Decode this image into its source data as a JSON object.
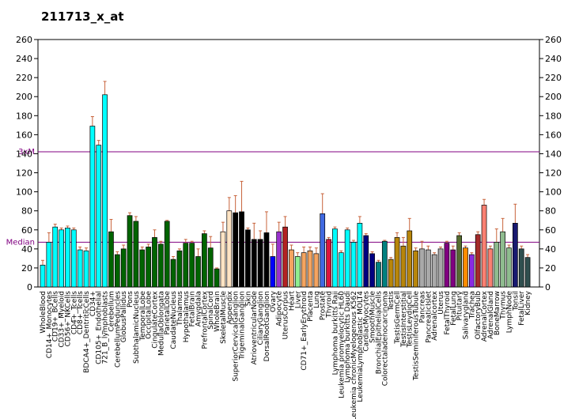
{
  "chart_data": {
    "type": "bar",
    "title": "211713_x_at",
    "ylim": [
      0,
      260
    ],
    "yticks": [
      20,
      40,
      60,
      80,
      100,
      120,
      140,
      160,
      180,
      200,
      220,
      240,
      260
    ],
    "yticklabels": [
      "20",
      "40",
      "60",
      "80",
      "100",
      "120",
      "140",
      "160",
      "180",
      "200",
      "220",
      "240",
      "260"
    ],
    "bottom_tick_label": "0",
    "ref_lines": [
      {
        "label": "3xM",
        "value": 142,
        "color": "#800080"
      },
      {
        "label": "Median",
        "value": 47,
        "color": "#800080"
      }
    ],
    "bars": [
      {
        "label": "WholeBlood",
        "value": 23,
        "err": 5,
        "color": "#00ffff"
      },
      {
        "label": "CD14+_Monocytes",
        "value": 47,
        "err": 10,
        "color": "#00ffff"
      },
      {
        "label": "CD19+_BCells",
        "value": 63,
        "err": 3,
        "color": "#00ffff"
      },
      {
        "label": "CD33+_Myeloid",
        "value": 60,
        "err": 2,
        "color": "#00ffff"
      },
      {
        "label": "CD56+_NKCells",
        "value": 62,
        "err": 2,
        "color": "#00ffff"
      },
      {
        "label": "CD4+_Tcells",
        "value": 60,
        "err": 2,
        "color": "#00ffff"
      },
      {
        "label": "CD8+_Tcells",
        "value": 39,
        "err": 3,
        "color": "#00ffff"
      },
      {
        "label": "BDCA4+_DentriticCells",
        "value": 38,
        "err": 3,
        "color": "#00ffff"
      },
      {
        "label": "CD34+",
        "value": 169,
        "err": 10,
        "color": "#00ffff"
      },
      {
        "label": "CD105+_Endothelial",
        "value": 149,
        "err": 5,
        "color": "#00ffff"
      },
      {
        "label": "721_B_lymphoblasts",
        "value": 202,
        "err": 14,
        "color": "#00ffff"
      },
      {
        "label": "Cerebellum",
        "value": 58,
        "err": 13,
        "color": "#006400"
      },
      {
        "label": "CerebellumPeduncles",
        "value": 34,
        "err": 3,
        "color": "#006400"
      },
      {
        "label": "GlobusPallidus",
        "value": 40,
        "err": 4,
        "color": "#006400"
      },
      {
        "label": "Pons",
        "value": 75,
        "err": 3,
        "color": "#006400"
      },
      {
        "label": "SubthalamicNucleus",
        "value": 69,
        "err": 5,
        "color": "#006400"
      },
      {
        "label": "TemporalLobe",
        "value": 39,
        "err": 3,
        "color": "#006400"
      },
      {
        "label": "OccipitalLobe",
        "value": 42,
        "err": 3,
        "color": "#006400"
      },
      {
        "label": "CingulateCortex",
        "value": 52,
        "err": 8,
        "color": "#006400"
      },
      {
        "label": "MedullaOblongata",
        "value": 45,
        "err": 3,
        "color": "#006400"
      },
      {
        "label": "ParietalLobe",
        "value": 69,
        "err": 1,
        "color": "#006400"
      },
      {
        "label": "CaudateNucleus",
        "value": 29,
        "err": 3,
        "color": "#006400"
      },
      {
        "label": "Thalamus",
        "value": 38,
        "err": 2,
        "color": "#006400"
      },
      {
        "label": "Hypothalamus",
        "value": 46,
        "err": 4,
        "color": "#006400"
      },
      {
        "label": "FetalBrain",
        "value": 46,
        "err": 2,
        "color": "#006400"
      },
      {
        "label": "Amygdala",
        "value": 32,
        "err": 8,
        "color": "#006400"
      },
      {
        "label": "PrefrontalCortex",
        "value": 56,
        "err": 3,
        "color": "#006400"
      },
      {
        "label": "SpinalCord",
        "value": 41,
        "err": 12,
        "color": "#006400"
      },
      {
        "label": "WholeBrain",
        "value": 19,
        "err": 1,
        "color": "#006400"
      },
      {
        "label": "SkeletalMuscle",
        "value": 58,
        "err": 10,
        "color": "#ffe4c4"
      },
      {
        "label": "Appendix",
        "value": 80,
        "err": 14,
        "color": "#ffe4c4"
      },
      {
        "label": "SuperiorCervicalGanglion",
        "value": 78,
        "err": 18,
        "color": "#000000"
      },
      {
        "label": "TrigeminalGanglion",
        "value": 79,
        "err": 32,
        "color": "#000000"
      },
      {
        "label": "Skin",
        "value": 60,
        "err": 2,
        "color": "#000000"
      },
      {
        "label": "AtrioventricularNode",
        "value": 50,
        "err": 17,
        "color": "#000000"
      },
      {
        "label": "CiliaryGanglion",
        "value": 50,
        "err": 9,
        "color": "#000000"
      },
      {
        "label": "DorsalRootGanglion",
        "value": 57,
        "err": 22,
        "color": "#000000"
      },
      {
        "label": "Ovary",
        "value": 32,
        "err": 13,
        "color": "#0000ff"
      },
      {
        "label": "Adipocyte",
        "value": 58,
        "err": 10,
        "color": "#9932cc"
      },
      {
        "label": "UterusCorpus",
        "value": 63,
        "err": 11,
        "color": "#b22222"
      },
      {
        "label": "Heart",
        "value": 39,
        "err": 5,
        "color": "#f4a460"
      },
      {
        "label": "Liver",
        "value": 32,
        "err": 4,
        "color": "#90ee90"
      },
      {
        "label": "CD71+_EarlyErythroid",
        "value": 36,
        "err": 6,
        "color": "#f4a460"
      },
      {
        "label": "Placenta",
        "value": 38,
        "err": 4,
        "color": "#f4a460"
      },
      {
        "label": "Lung",
        "value": 35,
        "err": 6,
        "color": "#f4a460"
      },
      {
        "label": "Prostate",
        "value": 77,
        "err": 21,
        "color": "#4169e1"
      },
      {
        "label": "Thyroid",
        "value": 50,
        "err": 2,
        "color": "#dc143c"
      },
      {
        "label": "Lymphoma burkitts Raji",
        "value": 61,
        "err": 2,
        "color": "#00ffff"
      },
      {
        "label": "Leukemia promyelocytic HL60",
        "value": 36,
        "err": 2,
        "color": "#00ffff"
      },
      {
        "label": "Lymphoma burkitts Daudi",
        "value": 60,
        "err": 2,
        "color": "#00ffff"
      },
      {
        "label": "Leukemia chronicMyelogenous K562",
        "value": 47,
        "err": 2,
        "color": "#00ffff"
      },
      {
        "label": "LeukemiaLymphoblastic MOLT4",
        "value": 67,
        "err": 7,
        "color": "#00ffff"
      },
      {
        "label": "CardiacMyocytes",
        "value": 54,
        "err": 2,
        "color": "#000080"
      },
      {
        "label": "SmoothMuscle",
        "value": 35,
        "err": 2,
        "color": "#000080"
      },
      {
        "label": "BronchialEpithelialCells",
        "value": 26,
        "err": 2,
        "color": "#008080"
      },
      {
        "label": "Colorectaladenocarcinoma",
        "value": 48,
        "err": 1,
        "color": "#008080"
      },
      {
        "label": "Testis",
        "value": 29,
        "err": 2,
        "color": "#b8860b"
      },
      {
        "label": "TestisGermCell",
        "value": 52,
        "err": 5,
        "color": "#b8860b"
      },
      {
        "label": "TestisInterstitial",
        "value": 43,
        "err": 9,
        "color": "#b8860b"
      },
      {
        "label": "TestisLeydigCell",
        "value": 59,
        "err": 13,
        "color": "#b8860b"
      },
      {
        "label": "TestisSeminiferousTubule",
        "value": 38,
        "err": 3,
        "color": "#b8860b"
      },
      {
        "label": "Pancreas",
        "value": 40,
        "err": 8,
        "color": "#a9a9a9"
      },
      {
        "label": "PancreaticIslet",
        "value": 39,
        "err": 4,
        "color": "#a9a9a9"
      },
      {
        "label": "Adrenalcortex",
        "value": 34,
        "err": 2,
        "color": "#a9a9a9"
      },
      {
        "label": "Uterus",
        "value": 40,
        "err": 2,
        "color": "#a9a9a9"
      },
      {
        "label": "FetalThyroid",
        "value": 46,
        "err": 2,
        "color": "#800080"
      },
      {
        "label": "FetalLung",
        "value": 39,
        "err": 4,
        "color": "#800080"
      },
      {
        "label": "Pituitary",
        "value": 54,
        "err": 3,
        "color": "#556b2f"
      },
      {
        "label": "Salivarygland",
        "value": 41,
        "err": 2,
        "color": "#ff8c00"
      },
      {
        "label": "Trachea",
        "value": 34,
        "err": 2,
        "color": "#8a2be2"
      },
      {
        "label": "OlfactoryBulb",
        "value": 55,
        "err": 3,
        "color": "#a52a2a"
      },
      {
        "label": "AdrenalCortex",
        "value": 86,
        "err": 6,
        "color": "#fa8072"
      },
      {
        "label": "AdrenalGland",
        "value": 40,
        "err": 3,
        "color": "#fa8072"
      },
      {
        "label": "BoneMarrow",
        "value": 47,
        "err": 14,
        "color": "#8fbc8f"
      },
      {
        "label": "Thymus",
        "value": 58,
        "err": 14,
        "color": "#8fbc8f"
      },
      {
        "label": "LymphNode",
        "value": 41,
        "err": 3,
        "color": "#8fbc8f"
      },
      {
        "label": "Tonsil",
        "value": 67,
        "err": 20,
        "color": "#191970"
      },
      {
        "label": "FetalLiver",
        "value": 40,
        "err": 3,
        "color": "#2f4f4f"
      },
      {
        "label": "Kidney",
        "value": 31,
        "err": 3,
        "color": "#2f4f4f"
      }
    ]
  }
}
